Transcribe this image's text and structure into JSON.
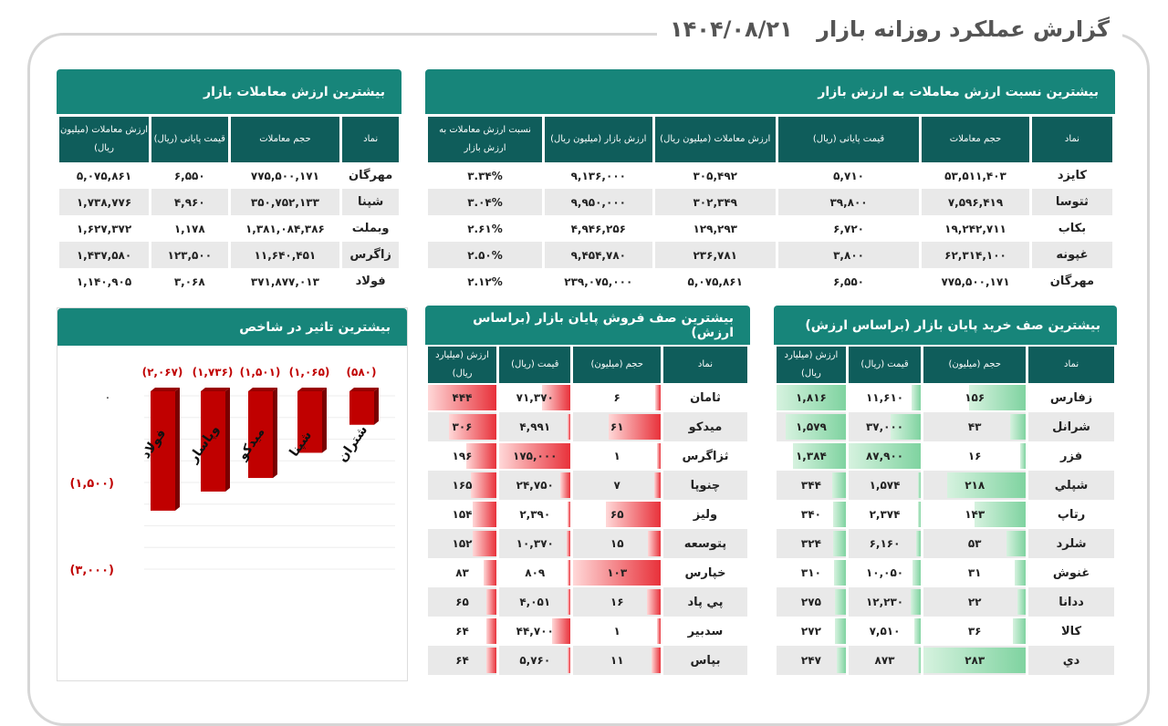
{
  "header": {
    "title": "گزارش عملکرد روزانه بازار",
    "date": "۱۴۰۴/۰۸/۲۱"
  },
  "ratio_table": {
    "title": "بیشترین نسبت ارزش معاملات به ارزش بازار",
    "columns": [
      "نماد",
      "حجم معاملات",
      "قیمت پایانی (ریال)",
      "ارزش معاملات (میلیون ریال)",
      "ارزش بازار (میلیون ریال)",
      "نسبت ارزش معاملات به ارزش بازار"
    ],
    "rows": [
      [
        "کایزد",
        "۵۳,۵۱۱,۴۰۳",
        "۵,۷۱۰",
        "۳۰۵,۴۹۲",
        "۹,۱۳۶,۰۰۰",
        "۳.۳۴%"
      ],
      [
        "ثتوسا",
        "۷,۵۹۶,۴۱۹",
        "۳۹,۸۰۰",
        "۳۰۲,۳۴۹",
        "۹,۹۵۰,۰۰۰",
        "۳.۰۴%"
      ],
      [
        "بکاب",
        "۱۹,۲۴۲,۷۱۱",
        "۶,۷۲۰",
        "۱۲۹,۲۹۳",
        "۴,۹۴۶,۲۵۶",
        "۲.۶۱%"
      ],
      [
        "غپونه",
        "۶۲,۳۱۴,۱۰۰",
        "۳,۸۰۰",
        "۲۳۶,۷۸۱",
        "۹,۴۵۴,۷۸۰",
        "۲.۵۰%"
      ],
      [
        "مهرگان",
        "۷۷۵,۵۰۰,۱۷۱",
        "۶,۵۵۰",
        "۵,۰۷۵,۸۶۱",
        "۲۳۹,۰۷۵,۰۰۰",
        "۲.۱۲%"
      ]
    ]
  },
  "value_table": {
    "title": "بیشترین ارزش معاملات بازار",
    "columns": [
      "نماد",
      "حجم معاملات",
      "قیمت پایانی (ریال)",
      "ارزش معاملات (میلیون ریال)"
    ],
    "rows": [
      [
        "مهرگان",
        "۷۷۵,۵۰۰,۱۷۱",
        "۶,۵۵۰",
        "۵,۰۷۵,۸۶۱"
      ],
      [
        "شپنا",
        "۳۵۰,۷۵۲,۱۳۳",
        "۴,۹۶۰",
        "۱,۷۳۸,۷۷۶"
      ],
      [
        "وبملت",
        "۱,۳۸۱,۰۸۴,۳۸۶",
        "۱,۱۷۸",
        "۱,۶۲۷,۳۷۲"
      ],
      [
        "زاگرس",
        "۱۱,۶۴۰,۴۵۱",
        "۱۲۳,۵۰۰",
        "۱,۴۳۷,۵۸۰"
      ],
      [
        "فولاد",
        "۳۷۱,۸۷۷,۰۱۳",
        "۳,۰۶۸",
        "۱,۱۴۰,۹۰۵"
      ]
    ]
  },
  "buy_table": {
    "title": "بیشترین صف خرید پایان بازار (براساس ارزش)",
    "accent": "#7fd3a0",
    "columns": [
      "نماد",
      "حجم (میلیون)",
      "قیمت (ریال)",
      "ارزش (میلیارد ریال)"
    ],
    "rows": [
      [
        "زفارس",
        "۱۵۶",
        "۱۱,۶۱۰",
        "۱,۸۱۶"
      ],
      [
        "شرانل",
        "۴۳",
        "۳۷,۰۰۰",
        "۱,۵۷۹"
      ],
      [
        "فزر",
        "۱۶",
        "۸۷,۹۰۰",
        "۱,۳۸۴"
      ],
      [
        "شپلي",
        "۲۱۸",
        "۱,۵۷۴",
        "۳۴۴"
      ],
      [
        "رتاپ",
        "۱۴۳",
        "۲,۳۷۴",
        "۳۴۰"
      ],
      [
        "شلرد",
        "۵۳",
        "۶,۱۶۰",
        "۳۲۴"
      ],
      [
        "غنوش",
        "۳۱",
        "۱۰,۰۵۰",
        "۳۱۰"
      ],
      [
        "ددانا",
        "۲۲",
        "۱۲,۲۳۰",
        "۲۷۵"
      ],
      [
        "کالا",
        "۳۶",
        "۷,۵۱۰",
        "۲۷۲"
      ],
      [
        "دي",
        "۲۸۳",
        "۸۷۳",
        "۲۴۷"
      ]
    ]
  },
  "sell_table": {
    "title": "بیشترین صف فروش پایان بازار (براساس ارزش)",
    "accent": "#e8313a",
    "columns": [
      "نماد",
      "حجم (میلیون)",
      "قیمت (ریال)",
      "ارزش (میلیارد ریال)"
    ],
    "rows": [
      [
        "ثامان",
        "۶",
        "۷۱,۳۷۰",
        "۴۴۴"
      ],
      [
        "میدکو",
        "۶۱",
        "۴,۹۹۱",
        "۳۰۶"
      ],
      [
        "ثزاگرس",
        "۱",
        "۱۷۵,۰۰۰",
        "۱۹۶"
      ],
      [
        "چنوپا",
        "۷",
        "۲۴,۷۵۰",
        "۱۶۵"
      ],
      [
        "ولیز",
        "۶۵",
        "۲,۳۹۰",
        "۱۵۴"
      ],
      [
        "پتوسعه",
        "۱۵",
        "۱۰,۳۷۰",
        "۱۵۲"
      ],
      [
        "خپارس",
        "۱۰۳",
        "۸۰۹",
        "۸۳"
      ],
      [
        "پي پاد",
        "۱۶",
        "۴,۰۵۱",
        "۶۵"
      ],
      [
        "سدبیر",
        "۱",
        "۴۴,۷۰۰",
        "۶۴"
      ],
      [
        "بپاس",
        "۱۱",
        "۵,۷۶۰",
        "۶۴"
      ]
    ]
  },
  "chart_data": {
    "type": "bar",
    "title": "بیشترین تاثیر در شاخص",
    "categories": [
      "فولاد",
      "وپاسار",
      "میدکو",
      "شپنا",
      "شتران"
    ],
    "values": [
      -2067,
      -1736,
      -1501,
      -1065,
      -580
    ],
    "data_labels": [
      "(۲,۰۶۷)",
      "(۱,۷۳۶)",
      "(۱,۵۰۱)",
      "(۱,۰۶۵)",
      "(۵۸۰)"
    ],
    "y_ticks": [
      0,
      -1500,
      -3000
    ],
    "y_tick_labels": [
      "۰",
      "(۱,۵۰۰)",
      "(۳,۰۰۰)"
    ],
    "ylim": [
      -3000,
      0
    ],
    "bar_color": "#c00000",
    "grid": true
  }
}
